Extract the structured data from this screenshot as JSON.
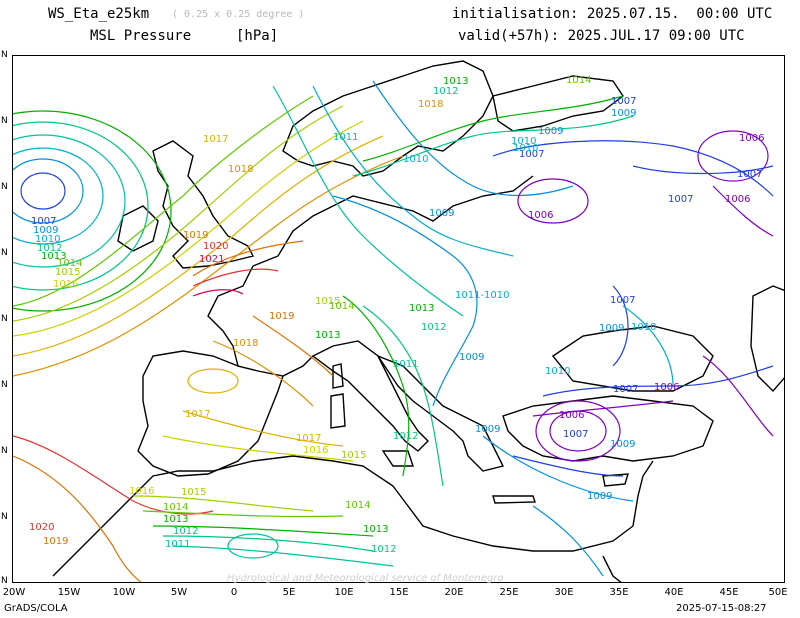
{
  "header": {
    "model": "WS_Eta_e25km",
    "resolution": "( 0.25 x 0.25 degree )",
    "field": "MSL Pressure",
    "unit": "[hPa]",
    "init": "initialisation: 2025.07.15.  00:00 UTC",
    "valid": "valid(+57h): 2025.JUL.17 09:00 UTC"
  },
  "footer": {
    "software": "GrADS/COLA",
    "timestamp": "2025-07-15-08:27",
    "watermark": "Hydrological and Meteorological service of Montenegro"
  },
  "axes": {
    "x_ticks": [
      "20W",
      "15W",
      "10W",
      "5W",
      "0",
      "5E",
      "10E",
      "15E",
      "20E",
      "25E",
      "30E",
      "35E",
      "40E",
      "45E",
      "50E"
    ],
    "y_ticks": [
      "N",
      "N",
      "N",
      "N",
      "N",
      "N",
      "N",
      "N",
      "N",
      "N"
    ]
  },
  "isobar_colors": {
    "1006": "#8000c0",
    "1007": "#2040e0",
    "1009": "#0090e0",
    "1010": "#00b0d0",
    "1011": "#00c0a0",
    "1012": "#00c880",
    "1013": "#00b000",
    "1014": "#60c800",
    "1015": "#a0d000",
    "1016": "#d0d000",
    "1017": "#e0b000",
    "1018": "#e09000",
    "1019": "#e07000",
    "1020": "#e03030",
    "1021": "#e00050"
  },
  "contour_labels": [
    {
      "text": "1017",
      "color": "#e0b000"
    },
    {
      "text": "1018",
      "color": "#e09000"
    },
    {
      "text": "1019",
      "color": "#e07000"
    },
    {
      "text": "1020",
      "color": "#e03030"
    },
    {
      "text": "1021",
      "color": "#e00050"
    },
    {
      "text": "1007",
      "color": "#2040e0"
    },
    {
      "text": "1009",
      "color": "#0090e0"
    },
    {
      "text": "1010",
      "color": "#00b0d0"
    },
    {
      "text": "1012",
      "color": "#00c880"
    },
    {
      "text": "1013",
      "color": "#00b000"
    },
    {
      "text": "1014",
      "color": "#60c800"
    },
    {
      "text": "1015",
      "color": "#a0d000"
    },
    {
      "text": "1016",
      "color": "#d0d000"
    },
    {
      "text": "1019",
      "color": "#e07000"
    },
    {
      "text": "1018",
      "color": "#e09000"
    },
    {
      "text": "1017",
      "color": "#e0b000"
    },
    {
      "text": "1017",
      "color": "#e0b000"
    },
    {
      "text": "1016",
      "color": "#d0d000"
    },
    {
      "text": "1015",
      "color": "#a0d000"
    },
    {
      "text": "1016",
      "color": "#d0d000"
    },
    {
      "text": "1015",
      "color": "#a0d000"
    },
    {
      "text": "1014",
      "color": "#60c800"
    },
    {
      "text": "1013",
      "color": "#00b000"
    },
    {
      "text": "1012",
      "color": "#00c880"
    },
    {
      "text": "1011",
      "color": "#00c0a0"
    },
    {
      "text": "1020",
      "color": "#e03030"
    },
    {
      "text": "1019",
      "color": "#e07000"
    },
    {
      "text": "1014",
      "color": "#60c800"
    },
    {
      "text": "1013",
      "color": "#00b000"
    },
    {
      "text": "1012",
      "color": "#00c880"
    },
    {
      "text": "1015",
      "color": "#a0d000"
    },
    {
      "text": "1014",
      "color": "#60c800"
    },
    {
      "text": "1013",
      "color": "#00b000"
    },
    {
      "text": "1013",
      "color": "#00b000"
    },
    {
      "text": "1012",
      "color": "#00c880"
    },
    {
      "text": "1011",
      "color": "#00c0a0"
    },
    {
      "text": "1012",
      "color": "#00c880"
    },
    {
      "text": "1011-1010",
      "color": "#00b0d0"
    },
    {
      "text": "1009",
      "color": "#0090e0"
    },
    {
      "text": "1009",
      "color": "#0090e0"
    },
    {
      "text": "1010",
      "color": "#00b0d0"
    },
    {
      "text": "1010",
      "color": "#00b0d0"
    },
    {
      "text": "1009",
      "color": "#0090e0"
    },
    {
      "text": "1007",
      "color": "#2040e0"
    },
    {
      "text": "1006",
      "color": "#8000c0"
    },
    {
      "text": "1007",
      "color": "#2040e0"
    },
    {
      "text": "1006",
      "color": "#8000c0"
    },
    {
      "text": "1007",
      "color": "#2040e0"
    },
    {
      "text": "1006",
      "color": "#8000c0"
    },
    {
      "text": "1007",
      "color": "#2040e0"
    },
    {
      "text": "1009",
      "color": "#0090e0"
    },
    {
      "text": "1010",
      "color": "#00b0d0"
    },
    {
      "text": "1007",
      "color": "#2040e0"
    },
    {
      "text": "1006",
      "color": "#8000c0"
    },
    {
      "text": "1006",
      "color": "#8000c0"
    },
    {
      "text": "1007",
      "color": "#2040e0"
    },
    {
      "text": "1009",
      "color": "#0090e0"
    },
    {
      "text": "1009",
      "color": "#0090e0"
    },
    {
      "text": "1009",
      "color": "#0090e0"
    },
    {
      "text": "1010",
      "color": "#00b0d0"
    },
    {
      "text": "1014",
      "color": "#60c800"
    },
    {
      "text": "1018",
      "color": "#e09000"
    },
    {
      "text": "1007",
      "color": "#2040e0"
    },
    {
      "text": "1009",
      "color": "#0090e0"
    },
    {
      "text": "1010",
      "color": "#00b0d0"
    },
    {
      "text": "1011",
      "color": "#00c0a0"
    },
    {
      "text": "1012",
      "color": "#00c880"
    },
    {
      "text": "1013",
      "color": "#00b000"
    }
  ]
}
